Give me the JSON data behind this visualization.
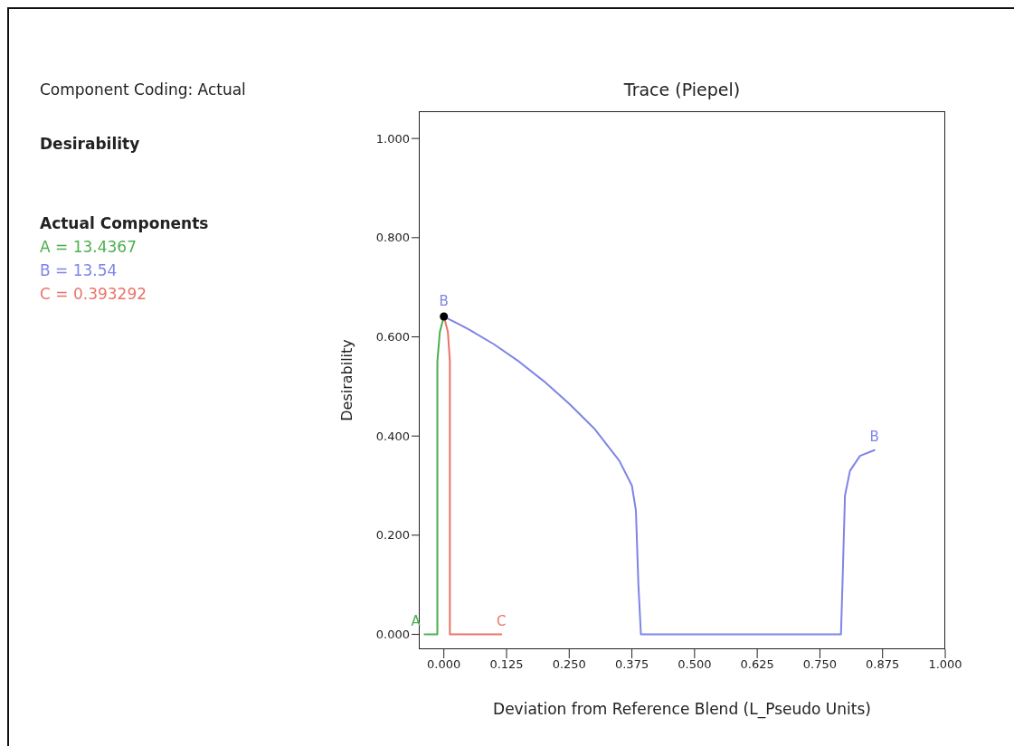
{
  "chart_data": {
    "type": "line",
    "title": "Trace (Piepel)",
    "xlabel": "Deviation from Reference Blend (L_Pseudo Units)",
    "ylabel": "Desirability",
    "xlim": [
      -0.05,
      1.0
    ],
    "ylim": [
      -0.03,
      1.055
    ],
    "xticks": [
      {
        "value": 0,
        "label": "0.000"
      },
      {
        "value": 0.125,
        "label": "0.125"
      },
      {
        "value": 0.25,
        "label": "0.250"
      },
      {
        "value": 0.375,
        "label": "0.375"
      },
      {
        "value": 0.5,
        "label": "0.500"
      },
      {
        "value": 0.625,
        "label": "0.625"
      },
      {
        "value": 0.75,
        "label": "0.750"
      },
      {
        "value": 0.875,
        "label": "0.875"
      },
      {
        "value": 1,
        "label": "1.000"
      }
    ],
    "yticks": [
      {
        "value": 0,
        "label": "0.000"
      },
      {
        "value": 0.2,
        "label": "0.200"
      },
      {
        "value": 0.4,
        "label": "0.400"
      },
      {
        "value": 0.6,
        "label": "0.600"
      },
      {
        "value": 0.8,
        "label": "0.800"
      },
      {
        "value": 1,
        "label": "1.000"
      }
    ],
    "grid": false,
    "legend": false,
    "marker": "none",
    "line_style": "solid",
    "series": [
      {
        "name": "A",
        "color": "#4caf50",
        "x": [
          0,
          -0.008,
          -0.013,
          -0.013,
          -0.04
        ],
        "values": [
          0.641,
          0.61,
          0.55,
          0,
          0
        ]
      },
      {
        "name": "B",
        "color": "#7f84e6",
        "x": [
          0,
          0.05,
          0.1,
          0.15,
          0.2,
          0.25,
          0.3,
          0.35,
          0.375,
          0.383,
          0.388,
          0.393,
          0.792,
          0.795,
          0.8,
          0.81,
          0.83,
          0.86
        ],
        "values": [
          0.641,
          0.615,
          0.585,
          0.55,
          0.51,
          0.465,
          0.415,
          0.35,
          0.3,
          0.25,
          0.1,
          0,
          0,
          0.1,
          0.28,
          0.33,
          0.36,
          0.372
        ]
      },
      {
        "name": "C",
        "color": "#e8746a",
        "x": [
          0,
          0.008,
          0.012,
          0.012,
          0.116
        ],
        "values": [
          0.641,
          0.61,
          0.55,
          0,
          0
        ]
      },
      {
        "type": "scatter",
        "color": "#000000",
        "marker": "circle",
        "x": [
          0
        ],
        "values": [
          0.641
        ]
      }
    ],
    "annotations": [
      "Component Coding: Actual",
      "Desirability",
      "Actual Components",
      "A = 13.4367",
      "B = 13.54",
      "C = 0.393292",
      {
        "text": "B",
        "x": 0,
        "y": 0.641
      }
    ]
  }
}
